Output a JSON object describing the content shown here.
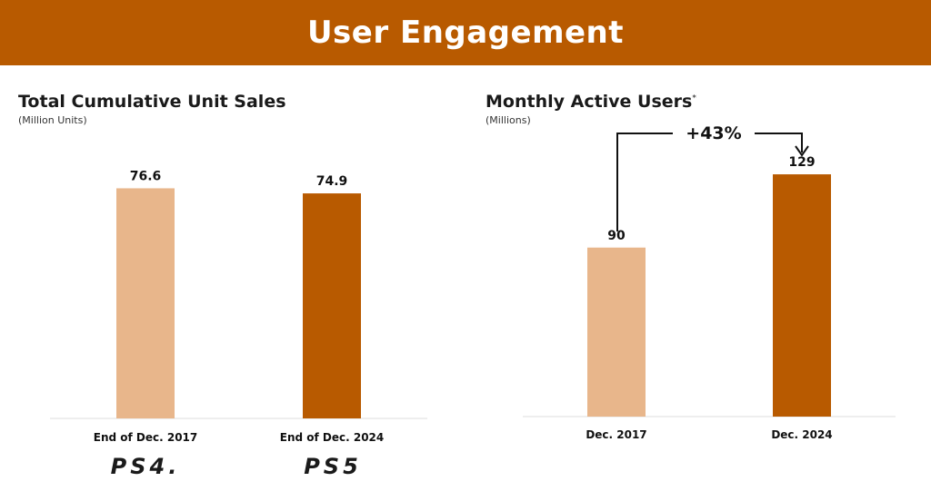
{
  "header": {
    "title": "User Engagement"
  },
  "panels": [
    {
      "title": "Total Cumulative Unit Sales",
      "note": "",
      "subtitle": "(Million Units)",
      "logos": [
        "PS4.",
        "PS5"
      ]
    },
    {
      "title": "Monthly Active Users",
      "note": "*",
      "subtitle": "(Millions)",
      "annotation": "+43%"
    }
  ],
  "colors": {
    "banner": "#b85a00",
    "light_bar": "#e8b68b",
    "dark_bar": "#b85a00",
    "baseline": "#dddddd"
  },
  "chart_data": [
    {
      "type": "bar",
      "title": "Total Cumulative Unit Sales",
      "ylabel": "(Million Units)",
      "categories": [
        "End of Dec. 2017",
        "End of Dec. 2024"
      ],
      "values": [
        76.6,
        74.9
      ],
      "value_labels": [
        "76.6",
        "74.9"
      ],
      "bar_colors": [
        "#e8b68b",
        "#b85a00"
      ],
      "ylim": [
        0,
        100
      ],
      "grid": false
    },
    {
      "type": "bar",
      "title": "Monthly Active Users",
      "ylabel": "(Millions)",
      "categories": [
        "Dec. 2017",
        "Dec. 2024"
      ],
      "values": [
        90,
        129
      ],
      "value_labels": [
        "90",
        "129"
      ],
      "bar_colors": [
        "#e8b68b",
        "#b85a00"
      ],
      "ylim": [
        0,
        159
      ],
      "grid": false
    }
  ]
}
